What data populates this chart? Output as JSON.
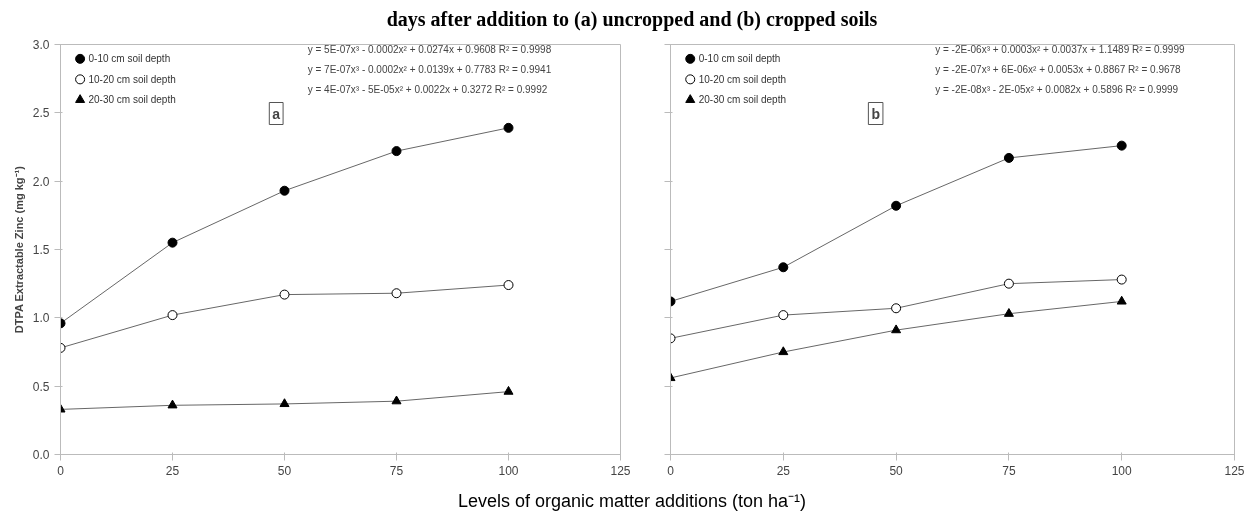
{
  "chart_data": [
    {
      "type": "line",
      "title": "days after addition to (a) uncropped and (b) cropped soils",
      "xlabel": "Levels of organic matter additions (ton ha⁻¹)",
      "ylabel": "DTPA Extractable Zinc (mg kg⁻¹)",
      "x": [
        0,
        25,
        50,
        75,
        100
      ],
      "xlim": [
        0,
        125
      ],
      "xticks": [
        0,
        25,
        50,
        75,
        100,
        125
      ],
      "ylim": [
        0,
        3
      ],
      "yticks": [
        {
          "value": 0,
          "label": "0.0"
        },
        {
          "value": 0.5,
          "label": "0.5"
        },
        {
          "value": 1,
          "label": "1.0"
        },
        {
          "value": 1.5,
          "label": "1.5"
        },
        {
          "value": 2,
          "label": "2.0"
        },
        {
          "value": 2.5,
          "label": "2.5"
        },
        {
          "value": 3,
          "label": "3.0"
        }
      ],
      "grid": false,
      "legend": "top left",
      "series": [
        {
          "name": "0-10 cm soil depth",
          "color": "#000000",
          "marker": "circle",
          "values": [
            0.96,
            1.55,
            1.93,
            2.22,
            2.39
          ]
        },
        {
          "name": "10-20 cm soil depth",
          "color": "#000000",
          "marker": "circle_open",
          "values": [
            0.78,
            1.02,
            1.17,
            1.18,
            1.24
          ]
        },
        {
          "name": "20-30 cm soil depth",
          "color": "#000000",
          "marker": "triangle",
          "values": [
            0.33,
            0.36,
            0.37,
            0.39,
            0.46
          ]
        }
      ],
      "annotations": [
        "y = 5E-07x³ - 0.0002x² + 0.0274x + 0.9608  R² = 0.9998",
        "y = 7E-07x³ - 0.0002x² + 0.0139x + 0.7783  R² = 0.9941",
        "y = 4E-07x³ - 5E-05x² + 0.0022x + 0.3272  R² = 0.9992",
        "a"
      ]
    },
    {
      "type": "line",
      "x": [
        0,
        25,
        50,
        75,
        100
      ],
      "xlim": [
        0,
        125
      ],
      "xticks": [
        0,
        25,
        50,
        75,
        100,
        125
      ],
      "ylim": [
        0,
        3
      ],
      "yticks": [
        {
          "value": 0,
          "label": null
        },
        {
          "value": 0.5,
          "label": null
        },
        {
          "value": 1,
          "label": null
        },
        {
          "value": 1.5,
          "label": null
        },
        {
          "value": 2,
          "label": null
        },
        {
          "value": 2.5,
          "label": null
        },
        {
          "value": 3,
          "label": null
        }
      ],
      "tick_labels": "x",
      "grid": false,
      "legend": "top left",
      "series": [
        {
          "name": "0-10 cm soil depth",
          "color": "#000000",
          "marker": "circle",
          "values": [
            1.12,
            1.37,
            1.82,
            2.17,
            2.26
          ]
        },
        {
          "name": "10-20 cm soil depth",
          "color": "#000000",
          "marker": "circle_open",
          "values": [
            0.85,
            1.02,
            1.07,
            1.25,
            1.28
          ]
        },
        {
          "name": "20-30 cm soil depth",
          "color": "#000000",
          "marker": "triangle",
          "values": [
            0.56,
            0.75,
            0.91,
            1.03,
            1.12
          ]
        }
      ],
      "annotations": [
        "y = -2E-06x³ + 0.0003x² + 0.0037x + 1.1489  R² = 0.9999",
        "y = -2E-07x³ + 6E-06x² + 0.0053x + 0.8867  R² = 0.9678",
        "y = -2E-08x³ - 2E-05x² + 0.0082x + 0.5896  R² = 0.9999",
        "b"
      ]
    }
  ]
}
